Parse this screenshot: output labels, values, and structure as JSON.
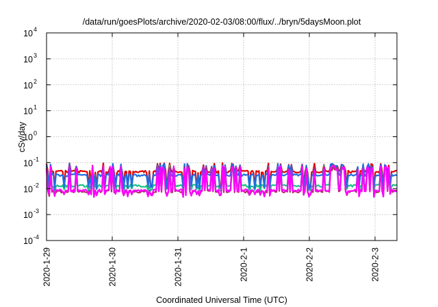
{
  "chart_data": {
    "type": "line",
    "title": "/data/run/goesPlots/archive/2020-02-03/08:00/flux/../bryn/5daysMoon.plot",
    "xlabel": "Coordinated Universal Time (UTC)",
    "ylabel": "cSv/day",
    "yscale": "log",
    "ylim": [
      0.0001,
      10000
    ],
    "xlim": [
      "2020-01-29T00:00",
      "2020-02-03T08:00"
    ],
    "grid": true,
    "x_ticks": [
      "2020-1-29",
      "2020-1-30",
      "2020-1-31",
      "2020-2-1",
      "2020-2-2",
      "2020-2-3"
    ],
    "y_ticks": [
      {
        "base": "10",
        "exp": "-4",
        "value": 0.0001
      },
      {
        "base": "10",
        "exp": "-3",
        "value": 0.001
      },
      {
        "base": "10",
        "exp": "-2",
        "value": 0.01
      },
      {
        "base": "10",
        "exp": "-1",
        "value": 0.1
      },
      {
        "base": "10",
        "exp": "0",
        "value": 1
      },
      {
        "base": "10",
        "exp": "1",
        "value": 10
      },
      {
        "base": "10",
        "exp": "2",
        "value": 100
      },
      {
        "base": "10",
        "exp": "3",
        "value": 1000
      },
      {
        "base": "10",
        "exp": "4",
        "value": 10000
      }
    ],
    "series": [
      {
        "color": "#e00000",
        "baseline": 0.045,
        "spike": 0.085,
        "dip": 0.012
      },
      {
        "color": "#1fc08a",
        "baseline": 0.013,
        "spike": 0.07,
        "dip": 0.009
      },
      {
        "color": "#1f6fe0",
        "baseline": 0.033,
        "spike": 0.08,
        "dip": 0.011
      },
      {
        "color": "#b0306a",
        "baseline": 0.0078,
        "spike": 0.06,
        "dip": 0.006
      },
      {
        "color": "#ff00ff",
        "baseline": 0.0085,
        "spike": 0.065,
        "dip": 0.0055
      }
    ]
  }
}
